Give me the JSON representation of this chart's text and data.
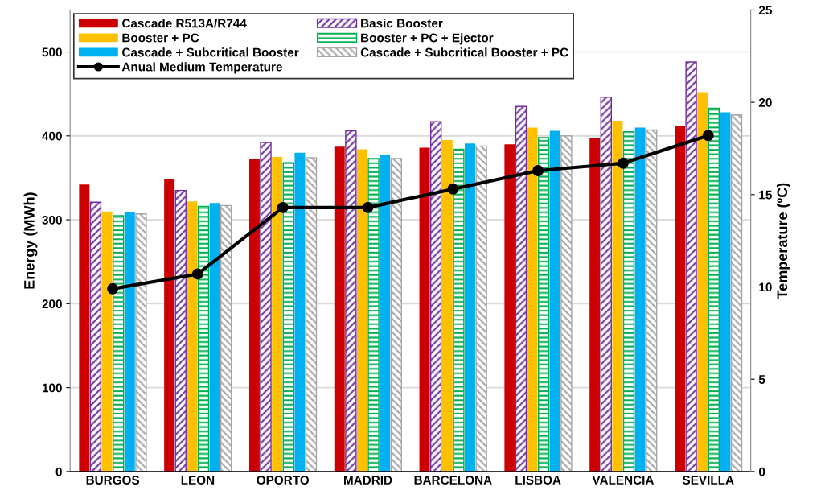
{
  "chart_data": {
    "type": "bar",
    "ylabel": "Energy (MWh)",
    "y2label": "Temperature (ºC)",
    "categories": [
      "BURGOS",
      "LEON",
      "OPORTO",
      "MADRID",
      "BARCELONA",
      "LISBOA",
      "VALENCIA",
      "SEVILLA"
    ],
    "series": [
      {
        "name": "Cascade R513A/R744",
        "color": "#cc0000",
        "values": [
          342,
          348,
          372,
          387,
          386,
          390,
          397,
          412
        ]
      },
      {
        "name": "Basic Booster",
        "color": "#7030a0",
        "values": [
          321,
          335,
          392,
          406,
          417,
          435,
          446,
          488
        ]
      },
      {
        "name": "Booster + PC",
        "color": "#ffc000",
        "values": [
          310,
          322,
          375,
          384,
          395,
          410,
          418,
          452
        ]
      },
      {
        "name": "Booster + PC + Ejector",
        "color": "#00b050",
        "values": [
          305,
          316,
          368,
          373,
          384,
          398,
          405,
          433
        ]
      },
      {
        "name": "Cascade + Subcritical Booster",
        "color": "#00b0f0",
        "values": [
          309,
          320,
          380,
          377,
          391,
          406,
          410,
          428
        ]
      },
      {
        "name": "Cascade + Subcritical Booster + PC",
        "color": "#a6a6a6",
        "values": [
          307,
          317,
          374,
          373,
          388,
          400,
          407,
          425
        ]
      },
      {
        "name": "Anual Medium Temperature",
        "type": "line",
        "axis": "y2",
        "marker": "circle",
        "color": "#000000",
        "values": [
          9.9,
          10.7,
          14.3,
          14.3,
          15.3,
          16.3,
          16.7,
          18.2
        ]
      }
    ],
    "ylim": [
      0,
      550
    ],
    "yticks": [
      0,
      100,
      200,
      300,
      400,
      500
    ],
    "y2lim": [
      0,
      25
    ],
    "y2ticks": [
      0,
      5,
      10,
      15,
      20,
      25
    ],
    "grid": "y",
    "legend": "top left"
  }
}
